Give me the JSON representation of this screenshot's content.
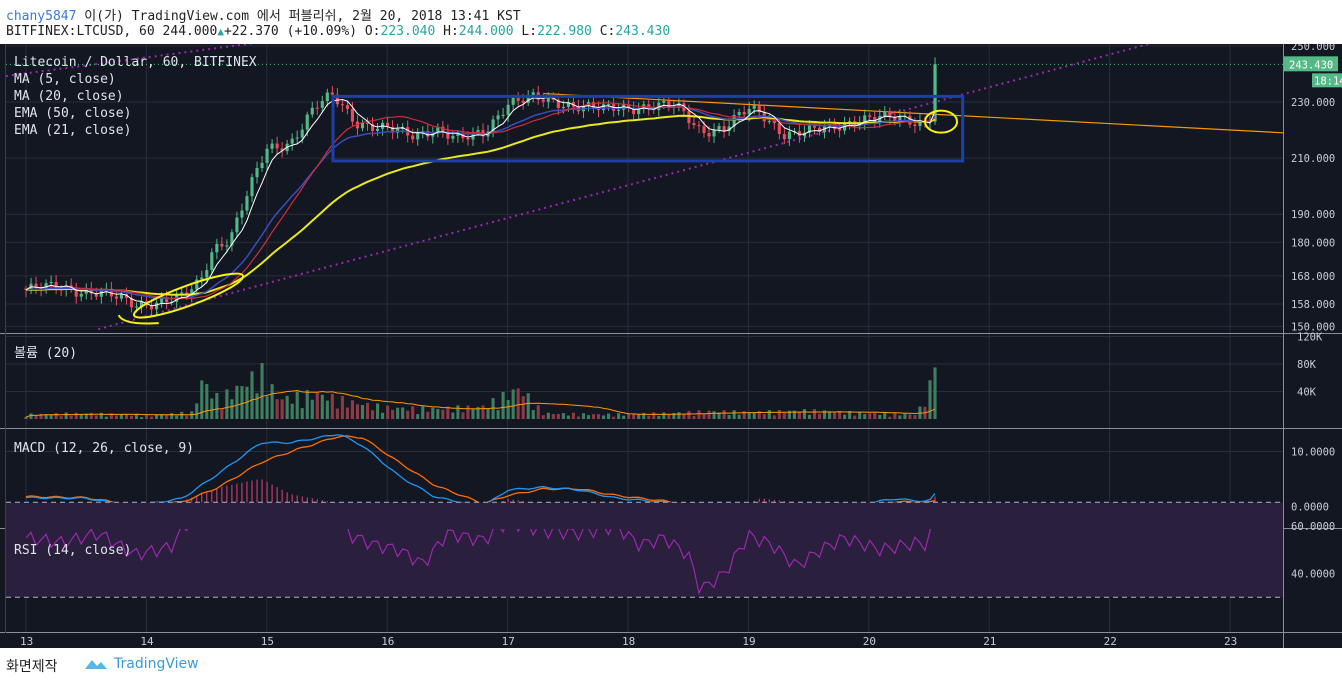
{
  "header": {
    "user": "chany5847",
    "published": "이(가) TradingView.com 에서 퍼블리쉬, 2월 20, 2018 13:41 KST",
    "symbol": "BITFINEX:LTCUSD, 60",
    "last": "244.000",
    "change": "+22.370 (+10.09%)",
    "o_label": "O:",
    "o": "223.040",
    "h_label": "H:",
    "h": "244.000",
    "l_label": "L:",
    "l": "222.980",
    "c_label": "C:",
    "c": "243.430"
  },
  "legend": [
    "Litecoin / Dollar, 60, BITFINEX",
    "MA (5, close)",
    "MA (20, close)",
    "EMA (50, close)",
    "EMA (21, close)"
  ],
  "panes": {
    "volume": "볼륨 (20)",
    "macd": "MACD (12, 26, close, 9)",
    "rsi": "RSI (14, close)"
  },
  "price_axis": {
    "ticks": [
      "250.000",
      "230.000",
      "210.000",
      "190.000",
      "180.000",
      "168.000",
      "158.000",
      "150.000"
    ],
    "values": [
      250,
      230,
      210,
      190,
      180,
      168,
      158,
      150
    ],
    "current_price": "243.430",
    "countdown": "18:14"
  },
  "volume_axis": {
    "ticks": [
      "120K",
      "80K",
      "40K"
    ],
    "values": [
      120,
      80,
      40
    ]
  },
  "macd_axis": {
    "ticks": [
      "10.0000",
      "0.0000"
    ],
    "values": [
      10,
      0
    ]
  },
  "rsi_axis": {
    "ticks": [
      "60.0000",
      "40.0000"
    ],
    "values": [
      60,
      40
    ]
  },
  "time_axis": {
    "labels": [
      "13",
      "14",
      "15",
      "16",
      "17",
      "18",
      "19",
      "20",
      "21",
      "22",
      "23"
    ]
  },
  "footer": {
    "caption": "화면제작",
    "brand": "TradingView"
  },
  "colors": {
    "background": "#131722",
    "grid": "#2a2e39",
    "up": "#53b987",
    "down": "#eb4d5c",
    "ma5": "#ffffff",
    "ma20": "#cc2f3c",
    "ema50": "#e8e81a",
    "ema21": "#3b4cc0",
    "trend_dotted": "#9c27b0",
    "annotation_box": "#1e3fa8",
    "annotation_yellow": "#f4f40f",
    "orange_line": "#ff9800",
    "macd_line": "#2196f3",
    "signal_line": "#ff6d00",
    "rsi_line": "#9c27b0"
  },
  "chart_data": {
    "type": "candlestick",
    "title": "Litecoin / Dollar, 60, BITFINEX",
    "x_label": "",
    "y_label": "",
    "ylim": [
      149,
      251
    ],
    "key_levels": {
      "open": 223.04,
      "high": 244.0,
      "low": 222.98,
      "close": 243.43
    },
    "price_path": [
      [
        13.0,
        163
      ],
      [
        13.3,
        164
      ],
      [
        13.6,
        162
      ],
      [
        13.9,
        158
      ],
      [
        14.1,
        159
      ],
      [
        14.3,
        160
      ],
      [
        14.45,
        166
      ],
      [
        14.55,
        178
      ],
      [
        14.7,
        182
      ],
      [
        14.85,
        198
      ],
      [
        15.0,
        213
      ],
      [
        15.2,
        216
      ],
      [
        15.4,
        228
      ],
      [
        15.55,
        232
      ],
      [
        15.75,
        223
      ],
      [
        16.0,
        220
      ],
      [
        16.2,
        218
      ],
      [
        16.4,
        221
      ],
      [
        16.6,
        216
      ],
      [
        16.8,
        219
      ],
      [
        17.0,
        230
      ],
      [
        17.2,
        231
      ],
      [
        17.4,
        230
      ],
      [
        17.6,
        229
      ],
      [
        17.8,
        227
      ],
      [
        18.0,
        228
      ],
      [
        18.2,
        229
      ],
      [
        18.4,
        228
      ],
      [
        18.6,
        220
      ],
      [
        18.8,
        221
      ],
      [
        19.0,
        227
      ],
      [
        19.1,
        226
      ],
      [
        19.3,
        219
      ],
      [
        19.5,
        219
      ],
      [
        19.7,
        221
      ],
      [
        19.9,
        224
      ],
      [
        20.1,
        224
      ],
      [
        20.3,
        224
      ],
      [
        20.45,
        223
      ],
      [
        20.53,
        224
      ],
      [
        20.55,
        243.43
      ]
    ],
    "volume_path": [
      [
        13.0,
        8
      ],
      [
        13.5,
        10
      ],
      [
        14.0,
        6
      ],
      [
        14.4,
        12
      ],
      [
        14.45,
        70
      ],
      [
        14.6,
        35
      ],
      [
        14.8,
        60
      ],
      [
        14.95,
        85
      ],
      [
        15.1,
        35
      ],
      [
        15.4,
        45
      ],
      [
        15.7,
        30
      ],
      [
        16.0,
        20
      ],
      [
        16.4,
        18
      ],
      [
        16.8,
        22
      ],
      [
        17.1,
        55
      ],
      [
        17.3,
        10
      ],
      [
        17.8,
        8
      ],
      [
        18.3,
        10
      ],
      [
        18.7,
        14
      ],
      [
        19.0,
        12
      ],
      [
        19.5,
        15
      ],
      [
        20.0,
        10
      ],
      [
        20.4,
        8
      ],
      [
        20.55,
        75
      ]
    ],
    "macd_path": [
      [
        13.0,
        1.6
      ],
      [
        13.5,
        1.5
      ],
      [
        13.9,
        0.0
      ],
      [
        14.3,
        1.5
      ],
      [
        14.6,
        6
      ],
      [
        14.95,
        11.6
      ],
      [
        15.2,
        11.6
      ],
      [
        15.6,
        13.2
      ],
      [
        15.8,
        11
      ],
      [
        16.1,
        5.5
      ],
      [
        16.4,
        1.7
      ],
      [
        16.8,
        0
      ],
      [
        17.0,
        3
      ],
      [
        17.3,
        3.5
      ],
      [
        17.6,
        3
      ],
      [
        17.9,
        1.5
      ],
      [
        18.3,
        0.8
      ],
      [
        18.6,
        -1
      ],
      [
        18.8,
        -2.4
      ],
      [
        19.1,
        -0.5
      ],
      [
        19.4,
        -0.3
      ],
      [
        19.6,
        -1.8
      ],
      [
        19.9,
        0.2
      ],
      [
        20.2,
        1.4
      ],
      [
        20.5,
        0.9
      ],
      [
        20.55,
        2.3
      ]
    ],
    "signal_path": [
      [
        13.0,
        1.8
      ],
      [
        13.5,
        1.6
      ],
      [
        13.9,
        0.2
      ],
      [
        14.3,
        0.8
      ],
      [
        14.6,
        3.5
      ],
      [
        14.95,
        8
      ],
      [
        15.2,
        10
      ],
      [
        15.6,
        12.8
      ],
      [
        15.8,
        12.5
      ],
      [
        16.1,
        8
      ],
      [
        16.4,
        3.8
      ],
      [
        16.8,
        0.5
      ],
      [
        17.0,
        2
      ],
      [
        17.3,
        3.2
      ],
      [
        17.6,
        3.2
      ],
      [
        17.9,
        2
      ],
      [
        18.3,
        1
      ],
      [
        18.6,
        0
      ],
      [
        18.8,
        -1.4
      ],
      [
        19.1,
        -1.6
      ],
      [
        19.4,
        -0.8
      ],
      [
        19.6,
        -1.3
      ],
      [
        19.9,
        -0.4
      ],
      [
        20.2,
        0.9
      ],
      [
        20.5,
        0.7
      ],
      [
        20.55,
        1.0
      ]
    ],
    "rsi_path": [
      [
        13.0,
        55
      ],
      [
        13.3,
        53
      ],
      [
        13.6,
        57
      ],
      [
        13.9,
        48
      ],
      [
        14.2,
        51
      ],
      [
        14.35,
        62
      ],
      [
        14.45,
        72
      ],
      [
        15.0,
        74
      ],
      [
        15.4,
        72
      ],
      [
        15.7,
        56
      ],
      [
        15.9,
        52
      ],
      [
        16.1,
        50
      ],
      [
        16.3,
        44
      ],
      [
        16.5,
        57
      ],
      [
        16.8,
        54
      ],
      [
        17.0,
        62
      ],
      [
        17.3,
        58
      ],
      [
        17.6,
        57
      ],
      [
        17.9,
        60
      ],
      [
        18.1,
        52
      ],
      [
        18.3,
        55
      ],
      [
        18.5,
        48
      ],
      [
        18.6,
        33
      ],
      [
        18.8,
        40
      ],
      [
        19.0,
        56
      ],
      [
        19.2,
        52
      ],
      [
        19.4,
        43
      ],
      [
        19.6,
        50
      ],
      [
        19.8,
        55
      ],
      [
        20.1,
        50
      ],
      [
        20.4,
        53
      ],
      [
        20.5,
        52
      ],
      [
        20.55,
        73
      ]
    ],
    "rsi_bands": [
      70,
      30
    ]
  }
}
